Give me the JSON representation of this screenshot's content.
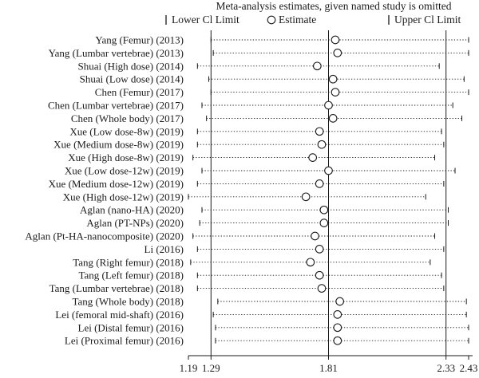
{
  "chart_data": {
    "type": "forest",
    "title": "Meta-analysis estimates, given named study is omitted",
    "legend": {
      "lower_label": "Lower Cl Limit",
      "estimate_label": "Estimate",
      "upper_label": "Upper Cl Limit",
      "placement": "top"
    },
    "reference_lines": [
      1.29,
      1.81,
      2.33
    ],
    "x_ticks": [
      "1.19",
      "1.29",
      "1.81",
      "2.33",
      "2.43"
    ],
    "x_tick_values": [
      1.19,
      1.29,
      1.81,
      2.33,
      2.43
    ],
    "xlim": [
      1.19,
      2.43
    ],
    "studies": [
      {
        "label": "Yang (Femur) (2013)",
        "lower": 1.29,
        "estimate": 1.84,
        "upper": 2.43
      },
      {
        "label": "Yang (Lumbar vertebrae) (2013)",
        "lower": 1.3,
        "estimate": 1.85,
        "upper": 2.43
      },
      {
        "label": "Shuai (High dose) (2014)",
        "lower": 1.23,
        "estimate": 1.76,
        "upper": 2.3
      },
      {
        "label": "Shuai (Low dose) (2014)",
        "lower": 1.28,
        "estimate": 1.83,
        "upper": 2.41
      },
      {
        "label": "Chen (Femur) (2017)",
        "lower": 1.29,
        "estimate": 1.84,
        "upper": 2.43
      },
      {
        "label": "Chen (Lumbar vertebrae) (2017)",
        "lower": 1.25,
        "estimate": 1.81,
        "upper": 2.36
      },
      {
        "label": "Chen (Whole body) (2017)",
        "lower": 1.27,
        "estimate": 1.83,
        "upper": 2.4
      },
      {
        "label": "Xue (Low dose-8w) (2019)",
        "lower": 1.23,
        "estimate": 1.77,
        "upper": 2.31
      },
      {
        "label": "Xue (Medium dose-8w) (2019)",
        "lower": 1.23,
        "estimate": 1.78,
        "upper": 2.32
      },
      {
        "label": "Xue (High dose-8w) (2019)",
        "lower": 1.21,
        "estimate": 1.74,
        "upper": 2.28
      },
      {
        "label": "Xue (Low dose-12w) (2019)",
        "lower": 1.25,
        "estimate": 1.81,
        "upper": 2.37
      },
      {
        "label": "Xue (Medium dose-12w) (2019)",
        "lower": 1.23,
        "estimate": 1.77,
        "upper": 2.32
      },
      {
        "label": "Xue (High dose-12w) (2019)",
        "lower": 1.19,
        "estimate": 1.71,
        "upper": 2.24
      },
      {
        "label": "Aglan (nano-HA) (2020)",
        "lower": 1.25,
        "estimate": 1.79,
        "upper": 2.34
      },
      {
        "label": "Aglan (PT-NPs) (2020)",
        "lower": 1.24,
        "estimate": 1.79,
        "upper": 2.34
      },
      {
        "label": "Aglan (Pt-HA-nanocomposite) (2020)",
        "lower": 1.21,
        "estimate": 1.75,
        "upper": 2.28
      },
      {
        "label": "Li (2016)",
        "lower": 1.23,
        "estimate": 1.77,
        "upper": 2.32
      },
      {
        "label": "Tang (Right femur) (2018)",
        "lower": 1.2,
        "estimate": 1.73,
        "upper": 2.26
      },
      {
        "label": "Tang (Left femur) (2018)",
        "lower": 1.23,
        "estimate": 1.77,
        "upper": 2.31
      },
      {
        "label": "Tang (Lumbar vertebrae) (2018)",
        "lower": 1.23,
        "estimate": 1.78,
        "upper": 2.32
      },
      {
        "label": "Tang (Whole body) (2018)",
        "lower": 1.32,
        "estimate": 1.86,
        "upper": 2.42
      },
      {
        "label": "Lei (femoral mid-shaft) (2016)",
        "lower": 1.3,
        "estimate": 1.85,
        "upper": 2.42
      },
      {
        "label": "Lei (Distal femur) (2016)",
        "lower": 1.31,
        "estimate": 1.85,
        "upper": 2.43
      },
      {
        "label": "Lei (Proximal femur) (2016)",
        "lower": 1.31,
        "estimate": 1.85,
        "upper": 2.43
      }
    ]
  }
}
